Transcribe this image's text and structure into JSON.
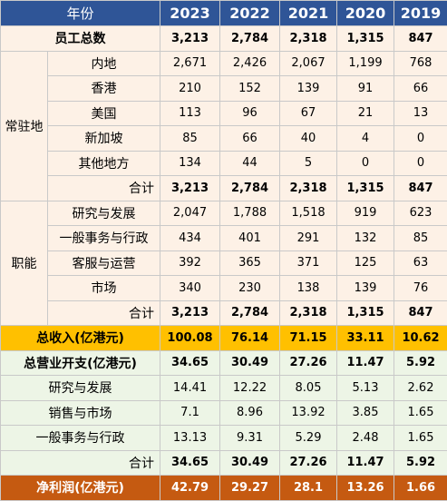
{
  "header": {
    "label": "年份",
    "years": [
      "2023",
      "2022",
      "2021",
      "2020",
      "2019"
    ]
  },
  "total_employees": {
    "label": "员工总数",
    "values": [
      "3,213",
      "2,784",
      "2,318",
      "1,315",
      "847"
    ]
  },
  "residence": {
    "group_label": "常驻地",
    "rows": [
      {
        "label": "内地",
        "values": [
          "2,671",
          "2,426",
          "2,067",
          "1,199",
          "768"
        ]
      },
      {
        "label": "香港",
        "values": [
          "210",
          "152",
          "139",
          "91",
          "66"
        ]
      },
      {
        "label": "美国",
        "values": [
          "113",
          "96",
          "67",
          "21",
          "13"
        ]
      },
      {
        "label": "新加坡",
        "values": [
          "85",
          "66",
          "40",
          "4",
          "0"
        ]
      },
      {
        "label": "其他地方",
        "values": [
          "134",
          "44",
          "5",
          "0",
          "0"
        ]
      }
    ],
    "total": {
      "label": "合计",
      "values": [
        "3,213",
        "2,784",
        "2,318",
        "1,315",
        "847"
      ]
    }
  },
  "function": {
    "group_label": "职能",
    "rows": [
      {
        "label": "研究与发展",
        "values": [
          "2,047",
          "1,788",
          "1,518",
          "919",
          "623"
        ]
      },
      {
        "label": "一般事务与行政",
        "values": [
          "434",
          "401",
          "291",
          "132",
          "85"
        ]
      },
      {
        "label": "客服与运营",
        "values": [
          "392",
          "365",
          "371",
          "125",
          "63"
        ]
      },
      {
        "label": "市场",
        "values": [
          "340",
          "230",
          "138",
          "139",
          "76"
        ]
      }
    ],
    "total": {
      "label": "合计",
      "values": [
        "3,213",
        "2,784",
        "2,318",
        "1,315",
        "847"
      ]
    }
  },
  "revenue": {
    "label": "总收入(亿港元)",
    "values": [
      "100.08",
      "76.14",
      "71.15",
      "33.11",
      "10.62"
    ]
  },
  "opex": {
    "label": "总营业开支(亿港元)",
    "values": [
      "34.65",
      "30.49",
      "27.26",
      "11.47",
      "5.92"
    ],
    "rows": [
      {
        "label": "研究与发展",
        "values": [
          "14.41",
          "12.22",
          "8.05",
          "5.13",
          "2.62"
        ]
      },
      {
        "label": "销售与市场",
        "values": [
          "7.1",
          "8.96",
          "13.92",
          "3.85",
          "1.65"
        ]
      },
      {
        "label": "一般事务与行政",
        "values": [
          "13.13",
          "9.31",
          "5.29",
          "2.48",
          "1.65"
        ]
      }
    ],
    "total": {
      "label": "合计",
      "values": [
        "34.65",
        "30.49",
        "27.26",
        "11.47",
        "5.92"
      ]
    }
  },
  "net_profit": {
    "label": "净利润(亿港元)",
    "values": [
      "42.79",
      "29.27",
      "28.1",
      "13.26",
      "1.66"
    ]
  },
  "colors": {
    "header": "#2f5597",
    "peach": "#fdf1e6",
    "green": "#edf5e6",
    "revenue": "#ffc000",
    "profit": "#c55a11"
  }
}
